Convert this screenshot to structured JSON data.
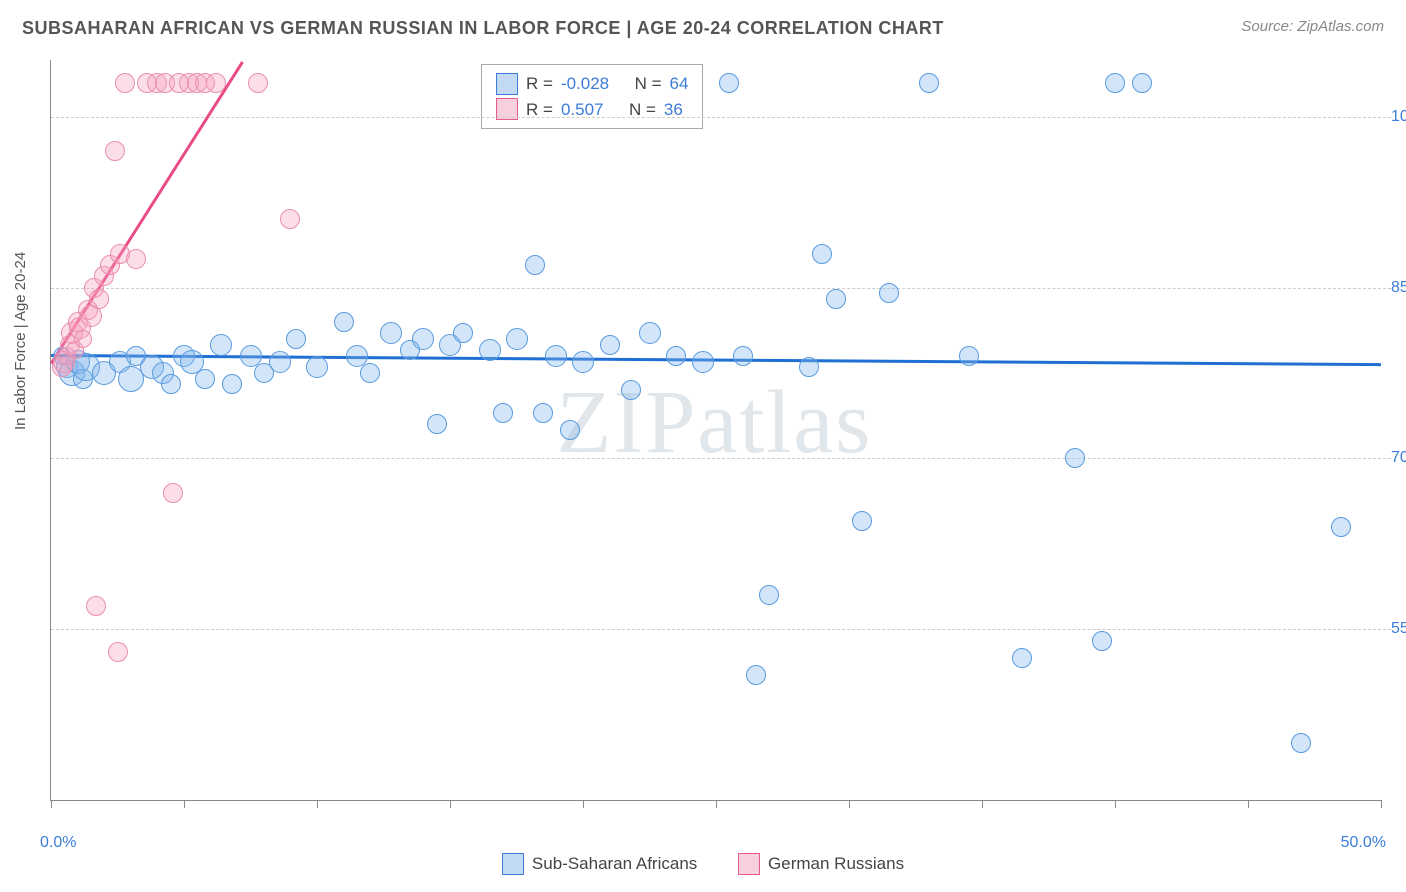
{
  "header": {
    "title": "SUBSAHARAN AFRICAN VS GERMAN RUSSIAN IN LABOR FORCE | AGE 20-24 CORRELATION CHART",
    "source_label": "Source: ",
    "source_name": "ZipAtlas.com"
  },
  "chart": {
    "type": "scatter",
    "ylabel": "In Labor Force | Age 20-24",
    "background_color": "#ffffff",
    "grid_color": "#cccccc",
    "axis_color": "#888888",
    "xlim": [
      0,
      50
    ],
    "ylim": [
      40,
      105
    ],
    "xtick_positions": [
      0,
      5,
      10,
      15,
      20,
      25,
      30,
      35,
      40,
      45,
      50
    ],
    "xtick_labels": {
      "0": "0.0%",
      "50": "50.0%"
    },
    "ytick_positions": [
      55,
      70,
      85,
      100
    ],
    "ytick_labels": {
      "55": "55.0%",
      "70": "70.0%",
      "85": "85.0%",
      "100": "100.0%"
    },
    "tick_color": "#3b7dd8",
    "tick_fontsize": 16,
    "label_fontsize": 15,
    "label_color": "#555555",
    "watermark": "ZIPatlas",
    "watermark_color": "rgba(120,140,160,0.22)",
    "watermark_fontsize": 90,
    "series": [
      {
        "name": "Sub-Saharan Africans",
        "color_fill": "rgba(130,180,235,0.35)",
        "color_stroke": "#5a9be0",
        "legend_color": "#3b7dd8",
        "marker": "circle",
        "R": "-0.028",
        "N": "64",
        "trend": {
          "x1": 0,
          "y1": 79.2,
          "x2": 50,
          "y2": 78.4,
          "color": "#1f6fd4",
          "width": 2.5
        },
        "points": [
          {
            "x": 0.4,
            "y": 79,
            "r": 8
          },
          {
            "x": 0.6,
            "y": 78,
            "r": 10
          },
          {
            "x": 0.8,
            "y": 77.5,
            "r": 12
          },
          {
            "x": 1.0,
            "y": 78.5,
            "r": 11
          },
          {
            "x": 1.2,
            "y": 77,
            "r": 9
          },
          {
            "x": 1.3,
            "y": 78,
            "r": 13
          },
          {
            "x": 2.0,
            "y": 77.5,
            "r": 11
          },
          {
            "x": 2.6,
            "y": 78.5,
            "r": 10
          },
          {
            "x": 3.0,
            "y": 77,
            "r": 12
          },
          {
            "x": 3.2,
            "y": 79,
            "r": 9
          },
          {
            "x": 3.8,
            "y": 78,
            "r": 11
          },
          {
            "x": 4.2,
            "y": 77.5,
            "r": 10
          },
          {
            "x": 4.5,
            "y": 76.5,
            "r": 9
          },
          {
            "x": 5.0,
            "y": 79,
            "r": 10
          },
          {
            "x": 5.3,
            "y": 78.5,
            "r": 11
          },
          {
            "x": 5.8,
            "y": 77,
            "r": 9
          },
          {
            "x": 6.4,
            "y": 80,
            "r": 10
          },
          {
            "x": 6.8,
            "y": 76.5,
            "r": 9
          },
          {
            "x": 7.5,
            "y": 79,
            "r": 10
          },
          {
            "x": 8.0,
            "y": 77.5,
            "r": 9
          },
          {
            "x": 8.6,
            "y": 78.5,
            "r": 10
          },
          {
            "x": 9.2,
            "y": 80.5,
            "r": 9
          },
          {
            "x": 10.0,
            "y": 78,
            "r": 10
          },
          {
            "x": 11.0,
            "y": 82,
            "r": 9
          },
          {
            "x": 11.5,
            "y": 79,
            "r": 10
          },
          {
            "x": 12.0,
            "y": 77.5,
            "r": 9
          },
          {
            "x": 12.8,
            "y": 81,
            "r": 10
          },
          {
            "x": 13.5,
            "y": 79.5,
            "r": 9
          },
          {
            "x": 14.0,
            "y": 80.5,
            "r": 10
          },
          {
            "x": 14.5,
            "y": 73,
            "r": 9
          },
          {
            "x": 15.0,
            "y": 80,
            "r": 10
          },
          {
            "x": 15.5,
            "y": 81,
            "r": 9
          },
          {
            "x": 16.5,
            "y": 79.5,
            "r": 10
          },
          {
            "x": 17.0,
            "y": 74,
            "r": 9
          },
          {
            "x": 17.5,
            "y": 80.5,
            "r": 10
          },
          {
            "x": 18.2,
            "y": 87,
            "r": 9
          },
          {
            "x": 18.5,
            "y": 74,
            "r": 9
          },
          {
            "x": 19.0,
            "y": 79,
            "r": 10
          },
          {
            "x": 19.5,
            "y": 72.5,
            "r": 9
          },
          {
            "x": 20.0,
            "y": 78.5,
            "r": 10
          },
          {
            "x": 21.0,
            "y": 80,
            "r": 9
          },
          {
            "x": 21.8,
            "y": 76,
            "r": 9
          },
          {
            "x": 22.5,
            "y": 81,
            "r": 10
          },
          {
            "x": 23.5,
            "y": 79,
            "r": 9
          },
          {
            "x": 24.5,
            "y": 78.5,
            "r": 10
          },
          {
            "x": 25.5,
            "y": 103,
            "r": 9
          },
          {
            "x": 26.0,
            "y": 79,
            "r": 9
          },
          {
            "x": 26.5,
            "y": 51,
            "r": 9
          },
          {
            "x": 27.0,
            "y": 58,
            "r": 9
          },
          {
            "x": 28.5,
            "y": 78,
            "r": 9
          },
          {
            "x": 29.0,
            "y": 88,
            "r": 9
          },
          {
            "x": 29.5,
            "y": 84,
            "r": 9
          },
          {
            "x": 30.5,
            "y": 64.5,
            "r": 9
          },
          {
            "x": 31.5,
            "y": 84.5,
            "r": 9
          },
          {
            "x": 33.0,
            "y": 103,
            "r": 9
          },
          {
            "x": 34.5,
            "y": 79,
            "r": 9
          },
          {
            "x": 36.5,
            "y": 52.5,
            "r": 9
          },
          {
            "x": 38.5,
            "y": 70,
            "r": 9
          },
          {
            "x": 39.5,
            "y": 54,
            "r": 9
          },
          {
            "x": 40.0,
            "y": 103,
            "r": 9
          },
          {
            "x": 41.0,
            "y": 103,
            "r": 9
          },
          {
            "x": 47.0,
            "y": 45,
            "r": 9
          },
          {
            "x": 48.5,
            "y": 64,
            "r": 9
          }
        ]
      },
      {
        "name": "German Russians",
        "color_fill": "rgba(245,160,190,0.35)",
        "color_stroke": "#e88fb0",
        "legend_color": "#e75a8d",
        "marker": "circle",
        "R": "0.507",
        "N": "36",
        "trend": {
          "x1": 0,
          "y1": 78.5,
          "x2": 7.2,
          "y2": 105,
          "color": "#e94b87",
          "width": 2.5
        },
        "points": [
          {
            "x": 0.4,
            "y": 78,
            "r": 9
          },
          {
            "x": 0.5,
            "y": 78.5,
            "r": 10
          },
          {
            "x": 0.6,
            "y": 79,
            "r": 8
          },
          {
            "x": 0.7,
            "y": 80,
            "r": 9
          },
          {
            "x": 0.8,
            "y": 81,
            "r": 10
          },
          {
            "x": 0.9,
            "y": 79.5,
            "r": 8
          },
          {
            "x": 1.0,
            "y": 82,
            "r": 9
          },
          {
            "x": 1.1,
            "y": 81.5,
            "r": 10
          },
          {
            "x": 1.2,
            "y": 80.5,
            "r": 8
          },
          {
            "x": 1.4,
            "y": 83,
            "r": 9
          },
          {
            "x": 1.5,
            "y": 82.5,
            "r": 10
          },
          {
            "x": 1.6,
            "y": 85,
            "r": 9
          },
          {
            "x": 1.8,
            "y": 84,
            "r": 9
          },
          {
            "x": 2.0,
            "y": 86,
            "r": 9
          },
          {
            "x": 2.2,
            "y": 87,
            "r": 9
          },
          {
            "x": 2.4,
            "y": 97,
            "r": 9
          },
          {
            "x": 2.6,
            "y": 88,
            "r": 9
          },
          {
            "x": 2.8,
            "y": 103,
            "r": 9
          },
          {
            "x": 3.2,
            "y": 87.5,
            "r": 9
          },
          {
            "x": 3.6,
            "y": 103,
            "r": 9
          },
          {
            "x": 4.0,
            "y": 103,
            "r": 9
          },
          {
            "x": 4.3,
            "y": 103,
            "r": 9
          },
          {
            "x": 4.6,
            "y": 67,
            "r": 9
          },
          {
            "x": 4.8,
            "y": 103,
            "r": 9
          },
          {
            "x": 5.2,
            "y": 103,
            "r": 9
          },
          {
            "x": 5.5,
            "y": 103,
            "r": 9
          },
          {
            "x": 5.8,
            "y": 103,
            "r": 9
          },
          {
            "x": 6.2,
            "y": 103,
            "r": 9
          },
          {
            "x": 7.8,
            "y": 103,
            "r": 9
          },
          {
            "x": 9.0,
            "y": 91,
            "r": 9
          },
          {
            "x": 1.7,
            "y": 57,
            "r": 9
          },
          {
            "x": 2.5,
            "y": 53,
            "r": 9
          }
        ]
      }
    ],
    "legend_stats": {
      "R_prefix": "R = ",
      "N_prefix": "N = "
    },
    "bottom_legend": {
      "items": [
        "Sub-Saharan Africans",
        "German Russians"
      ]
    }
  }
}
